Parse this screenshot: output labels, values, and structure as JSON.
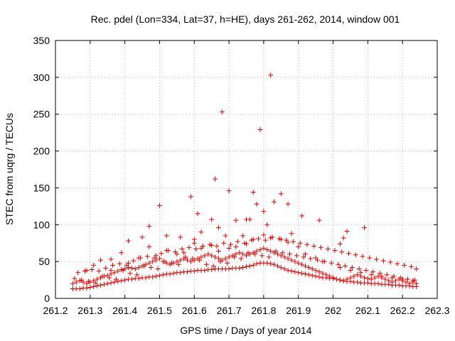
{
  "chart_data": {
    "type": "scatter",
    "title": "Rec. pdel (Lon=334, Lat=37, h=HE), days 261-262, 2014, window 001",
    "xlabel": "GPS time / Days of year 2014",
    "ylabel": "STEC from uqrg / TECUs",
    "xlim": [
      261.2,
      262.3
    ],
    "ylim": [
      0,
      350
    ],
    "xticks": [
      261.2,
      261.3,
      261.4,
      261.5,
      261.6,
      261.7,
      261.8,
      261.9,
      262,
      262.1,
      262.2,
      262.3
    ],
    "xtick_labels": [
      "261.2",
      "261.3",
      "261.4",
      "261.5",
      "261.6",
      "261.7",
      "261.8",
      "261.9",
      "262",
      "262.1",
      "262.2",
      "262.3"
    ],
    "yticks": [
      0,
      50,
      100,
      150,
      200,
      250,
      300,
      350
    ],
    "ytick_labels": [
      "0",
      "50",
      "100",
      "150",
      "200",
      "250",
      "300",
      "350"
    ],
    "grid": true,
    "marker": "plus",
    "color": "#e00000",
    "x": [
      261.25,
      261.26,
      261.27,
      261.28,
      261.29,
      261.3,
      261.31,
      261.32,
      261.33,
      261.34,
      261.35,
      261.36,
      261.37,
      261.38,
      261.39,
      261.4,
      261.41,
      261.42,
      261.43,
      261.44,
      261.45,
      261.46,
      261.47,
      261.48,
      261.49,
      261.5,
      261.51,
      261.52,
      261.53,
      261.54,
      261.55,
      261.56,
      261.57,
      261.58,
      261.59,
      261.6,
      261.61,
      261.62,
      261.63,
      261.64,
      261.65,
      261.66,
      261.67,
      261.68,
      261.69,
      261.7,
      261.71,
      261.72,
      261.73,
      261.74,
      261.75,
      261.76,
      261.77,
      261.78,
      261.79,
      261.8,
      261.81,
      261.82,
      261.83,
      261.84,
      261.85,
      261.86,
      261.87,
      261.88,
      261.89,
      261.9,
      261.91,
      261.92,
      261.93,
      261.94,
      261.95,
      261.96,
      261.97,
      261.98,
      261.99,
      262.0,
      262.01,
      262.02,
      262.03,
      262.04,
      262.05,
      262.06,
      262.07,
      262.08,
      262.09,
      262.1,
      262.11,
      262.12,
      262.13,
      262.14,
      262.15,
      262.16,
      262.17,
      262.18,
      262.19,
      262.2,
      262.21,
      262.22,
      262.23,
      262.24,
      261.25,
      261.26,
      261.27,
      261.28,
      261.29,
      261.3,
      261.31,
      261.32,
      261.33,
      261.34,
      261.35,
      261.36,
      261.37,
      261.38,
      261.39,
      261.4,
      261.41,
      261.42,
      261.43,
      261.44,
      261.45,
      261.46,
      261.47,
      261.48,
      261.49,
      261.5,
      261.51,
      261.52,
      261.53,
      261.54,
      261.55,
      261.56,
      261.57,
      261.58,
      261.59,
      261.6,
      261.61,
      261.62,
      261.63,
      261.64,
      261.65,
      261.66,
      261.67,
      261.68,
      261.69,
      261.7,
      261.71,
      261.72,
      261.73,
      261.74,
      261.75,
      261.76,
      261.77,
      261.78,
      261.79,
      261.8,
      261.81,
      261.82,
      261.83,
      261.84,
      261.85,
      261.86,
      261.87,
      261.88,
      261.89,
      261.9,
      261.91,
      261.92,
      261.93,
      261.94,
      261.95,
      261.96,
      261.97,
      261.98,
      261.99,
      262.0,
      262.01,
      262.02,
      262.03,
      262.04,
      262.05,
      262.06,
      262.07,
      262.08,
      262.09,
      262.1,
      262.11,
      262.12,
      262.13,
      262.14,
      262.15,
      262.16,
      262.17,
      262.18,
      262.19,
      262.2,
      262.21,
      262.22,
      262.23,
      262.24,
      261.255,
      261.275,
      261.295,
      261.315,
      261.335,
      261.355,
      261.375,
      261.395,
      261.415,
      261.435,
      261.455,
      261.475,
      261.495,
      261.515,
      261.535,
      261.555,
      261.575,
      261.595,
      261.615,
      261.635,
      261.655,
      261.675,
      261.695,
      261.715,
      261.735,
      261.755,
      261.775,
      261.795,
      261.815,
      261.835,
      261.855,
      261.875,
      261.895,
      261.915,
      261.935,
      261.955,
      261.975,
      261.995,
      262.015,
      262.035,
      262.055,
      262.075,
      262.095,
      262.115,
      262.135,
      262.155,
      262.175,
      262.195,
      262.215,
      262.235,
      261.265,
      261.285,
      261.305,
      261.325,
      261.345,
      261.365,
      261.385,
      261.405,
      261.425,
      261.445,
      261.465,
      261.485,
      261.505,
      261.525,
      261.545,
      261.565,
      261.585,
      261.605,
      261.625,
      261.645,
      261.665,
      261.685,
      261.705,
      261.725,
      261.745,
      261.765,
      261.785,
      261.805,
      261.825,
      261.845,
      261.865,
      261.885,
      261.905,
      261.925,
      261.945,
      261.965,
      261.985,
      262.005,
      262.025,
      262.045,
      262.065,
      262.085,
      262.105,
      262.125,
      262.145,
      262.165,
      262.185,
      262.205,
      262.225,
      262.24,
      261.29,
      261.31,
      261.33,
      261.36,
      261.39,
      261.41,
      261.44,
      261.47,
      261.49,
      261.52,
      261.55,
      261.57,
      261.6,
      261.62,
      261.65,
      261.67,
      261.7,
      261.72,
      261.75,
      261.77,
      261.8,
      261.82,
      261.85,
      261.87,
      261.9,
      261.92,
      261.95,
      261.97,
      262.02,
      262.05,
      262.08,
      262.11,
      262.14,
      262.17,
      262.2,
      262.23,
      261.36,
      261.41,
      261.45,
      261.47,
      261.5,
      261.52,
      261.56,
      261.59,
      261.6,
      261.61,
      261.62,
      261.65,
      261.66,
      261.67,
      261.68,
      261.69,
      261.7,
      261.72,
      261.74,
      261.75,
      261.76,
      261.77,
      261.78,
      261.79,
      261.8,
      261.81,
      261.82,
      261.83,
      261.85,
      261.87,
      261.88,
      261.91,
      261.96,
      262.02,
      262.03,
      262.04,
      262.09
    ],
    "y": [
      13,
      13,
      13,
      14,
      14,
      15,
      16,
      17,
      18,
      19,
      20,
      21,
      22,
      23,
      24,
      25,
      26,
      26,
      27,
      27,
      28,
      28,
      29,
      29,
      30,
      31,
      32,
      33,
      33,
      34,
      35,
      35,
      36,
      36,
      37,
      37,
      38,
      38,
      38,
      39,
      39,
      40,
      40,
      40,
      40,
      40,
      41,
      41,
      41,
      42,
      43,
      44,
      45,
      47,
      48,
      48,
      48,
      47,
      46,
      44,
      42,
      40,
      38,
      37,
      36,
      35,
      34,
      33,
      32,
      31,
      30,
      29,
      28,
      28,
      27,
      27,
      26,
      25,
      24,
      23,
      23,
      22,
      22,
      21,
      21,
      21,
      20,
      20,
      20,
      19,
      19,
      19,
      18,
      18,
      18,
      17,
      17,
      17,
      16,
      16,
      20,
      22,
      24,
      22,
      20,
      22,
      24,
      26,
      28,
      30,
      31,
      33,
      35,
      37,
      39,
      40,
      42,
      41,
      40,
      42,
      44,
      46,
      48,
      50,
      52,
      54,
      50,
      48,
      46,
      48,
      50,
      52,
      54,
      52,
      50,
      52,
      54,
      56,
      58,
      60,
      58,
      56,
      54,
      52,
      54,
      56,
      58,
      60,
      62,
      60,
      58,
      60,
      62,
      64,
      66,
      68,
      66,
      64,
      62,
      60,
      58,
      56,
      54,
      52,
      50,
      48,
      46,
      44,
      42,
      40,
      38,
      36,
      34,
      32,
      30,
      28,
      26,
      25,
      24,
      26,
      28,
      30,
      32,
      30,
      28,
      27,
      26,
      28,
      30,
      28,
      26,
      24,
      22,
      24,
      26,
      24,
      22,
      20,
      22,
      20,
      27,
      25,
      23,
      21,
      30,
      28,
      26,
      38,
      34,
      32,
      44,
      42,
      40,
      50,
      48,
      46,
      56,
      54,
      52,
      46,
      44,
      50,
      48,
      56,
      54,
      62,
      60,
      58,
      56,
      64,
      62,
      60,
      58,
      56,
      54,
      52,
      50,
      48,
      46,
      44,
      42,
      40,
      38,
      36,
      34,
      32,
      30,
      28,
      26,
      25,
      35,
      37,
      39,
      37,
      41,
      45,
      47,
      45,
      51,
      55,
      57,
      55,
      61,
      65,
      63,
      67,
      69,
      67,
      71,
      73,
      71,
      75,
      73,
      77,
      75,
      79,
      81,
      79,
      83,
      81,
      79,
      77,
      75,
      73,
      71,
      69,
      67,
      65,
      63,
      61,
      59,
      57,
      55,
      53,
      51,
      49,
      47,
      45,
      43,
      40,
      38,
      45,
      52,
      38,
      62,
      48,
      55,
      70,
      58,
      65,
      60,
      62,
      75,
      68,
      72,
      64,
      68,
      70,
      74,
      80,
      86,
      82,
      80,
      76,
      70,
      60,
      55,
      50,
      42,
      38,
      35,
      32,
      30,
      28,
      26,
      24,
      53,
      78,
      83,
      98,
      126,
      85,
      83,
      138,
      80,
      115,
      90,
      107,
      162,
      96,
      253,
      85,
      146,
      106,
      85,
      107,
      107,
      144,
      128,
      229,
      118,
      100,
      303,
      131,
      142,
      128,
      88,
      112,
      106,
      74,
      82,
      91,
      96
    ]
  }
}
